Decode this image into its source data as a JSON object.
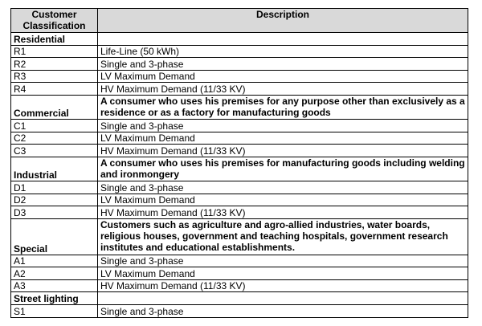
{
  "header": {
    "col1": "Customer Classification",
    "col2": "Description"
  },
  "rows": [
    {
      "type": "cat",
      "label": "Residential",
      "desc": ""
    },
    {
      "type": "row",
      "label": "R1",
      "desc": "Life-Line (50 kWh)"
    },
    {
      "type": "row",
      "label": "R2",
      "desc": "Single and 3-phase"
    },
    {
      "type": "row",
      "label": "R3",
      "desc": "LV Maximum Demand"
    },
    {
      "type": "row",
      "label": "R4",
      "desc": "HV Maximum Demand (11/33 KV)"
    },
    {
      "type": "cat",
      "label": "Commercial",
      "desc": "A consumer who uses his premises for any purpose other than exclusively as a residence or as a factory for manufacturing goods",
      "lines": 2
    },
    {
      "type": "row",
      "label": "C1",
      "desc": "Single and 3-phase"
    },
    {
      "type": "row",
      "label": "C2",
      "desc": "LV Maximum Demand"
    },
    {
      "type": "row",
      "label": "C3",
      "desc": "HV Maximum Demand (11/33 KV)"
    },
    {
      "type": "cat",
      "label": "Industrial",
      "desc": "A consumer who uses his premises for manufacturing goods including welding and ironmongery",
      "lines": 2
    },
    {
      "type": "row",
      "label": "D1",
      "desc": "Single and 3-phase"
    },
    {
      "type": "row",
      "label": "D2",
      "desc": "LV Maximum Demand"
    },
    {
      "type": "row",
      "label": "D3",
      "desc": "HV Maximum Demand (11/33 KV)"
    },
    {
      "type": "cat",
      "label": "Special",
      "desc": "Customers such as agriculture and agro-allied industries, water boards, religious houses, government and teaching hospitals, government research institutes and educational establishments.",
      "lines": 3
    },
    {
      "type": "row",
      "label": "A1",
      "desc": "Single and 3-phase"
    },
    {
      "type": "row",
      "label": "A2",
      "desc": "LV Maximum Demand"
    },
    {
      "type": "row",
      "label": "A3",
      "desc": "HV Maximum Demand (11/33 KV)"
    },
    {
      "type": "cat",
      "label": "Street lighting",
      "desc": ""
    },
    {
      "type": "row",
      "label": "S1",
      "desc": "Single and 3-phase"
    }
  ]
}
